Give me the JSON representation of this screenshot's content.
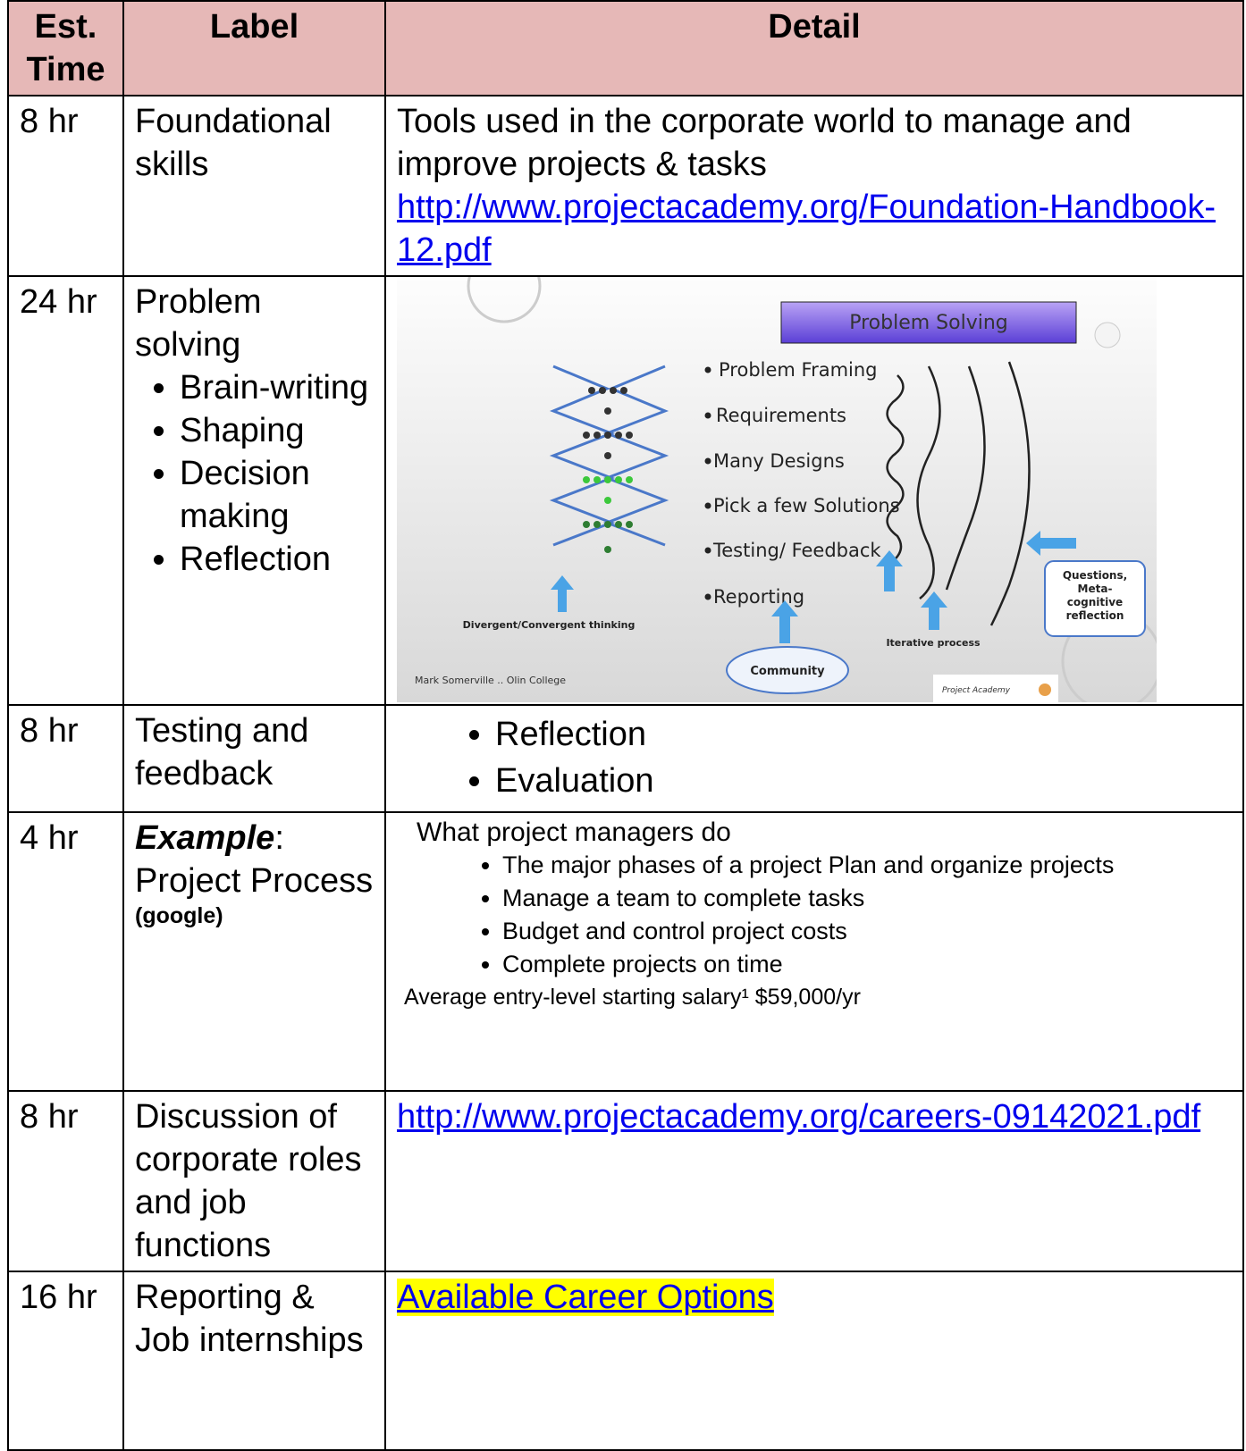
{
  "table": {
    "header": [
      "Est. Time",
      "Label",
      "Detail"
    ],
    "rows": [
      {
        "time": "8 hr",
        "label": "Foundational skills",
        "detail": {
          "text": "Tools used in the corporate world to manage and improve projects & tasks",
          "link": "http://www.projectacademy.org/Foundation-Handbook-12.pdf"
        }
      },
      {
        "time": "24 hr",
        "label": "Problem solving",
        "bullets": [
          "Brain-writing",
          "Shaping",
          "Decision making",
          "Reflection"
        ],
        "slide": {
          "title": "Problem Solving",
          "steps": [
            "Problem Framing",
            "Requirements",
            "Many Designs",
            "Pick a few Solutions",
            "Testing/ Feedback",
            "Reporting"
          ],
          "left_caption": "Divergent/Convergent thinking",
          "community": "Community",
          "iterative": "Iterative process",
          "questions": [
            "Questions,",
            "Meta-",
            "cognitive",
            "reflection"
          ],
          "credit": "Mark Somerville .. Olin College",
          "brand": "Project Academy"
        }
      },
      {
        "time": "8 hr",
        "label": "Testing and feedback",
        "detail": {
          "bullets": [
            "Reflection",
            "Evaluation"
          ]
        }
      },
      {
        "time": "4 hr",
        "label": {
          "emphasis": "Example",
          "colon": ":",
          "text": "Project Process",
          "note": "(google)"
        },
        "detail": {
          "heading": "What project managers do",
          "bullets": [
            "The major phases of a project Plan and organize projects",
            "Manage a team to complete tasks",
            "Budget and control project costs",
            "Complete projects on time"
          ],
          "footer": "Average entry-level starting salary¹ $59,000/yr"
        }
      },
      {
        "time": "8 hr",
        "label": "Discussion of corporate roles and job functions",
        "detail": {
          "link": "http://www.projectacademy.org/careers-09142021.pdf"
        }
      },
      {
        "time": "16 hr",
        "label": "Reporting & Job internships",
        "detail": {
          "link": "Available Career Options"
        }
      }
    ]
  }
}
